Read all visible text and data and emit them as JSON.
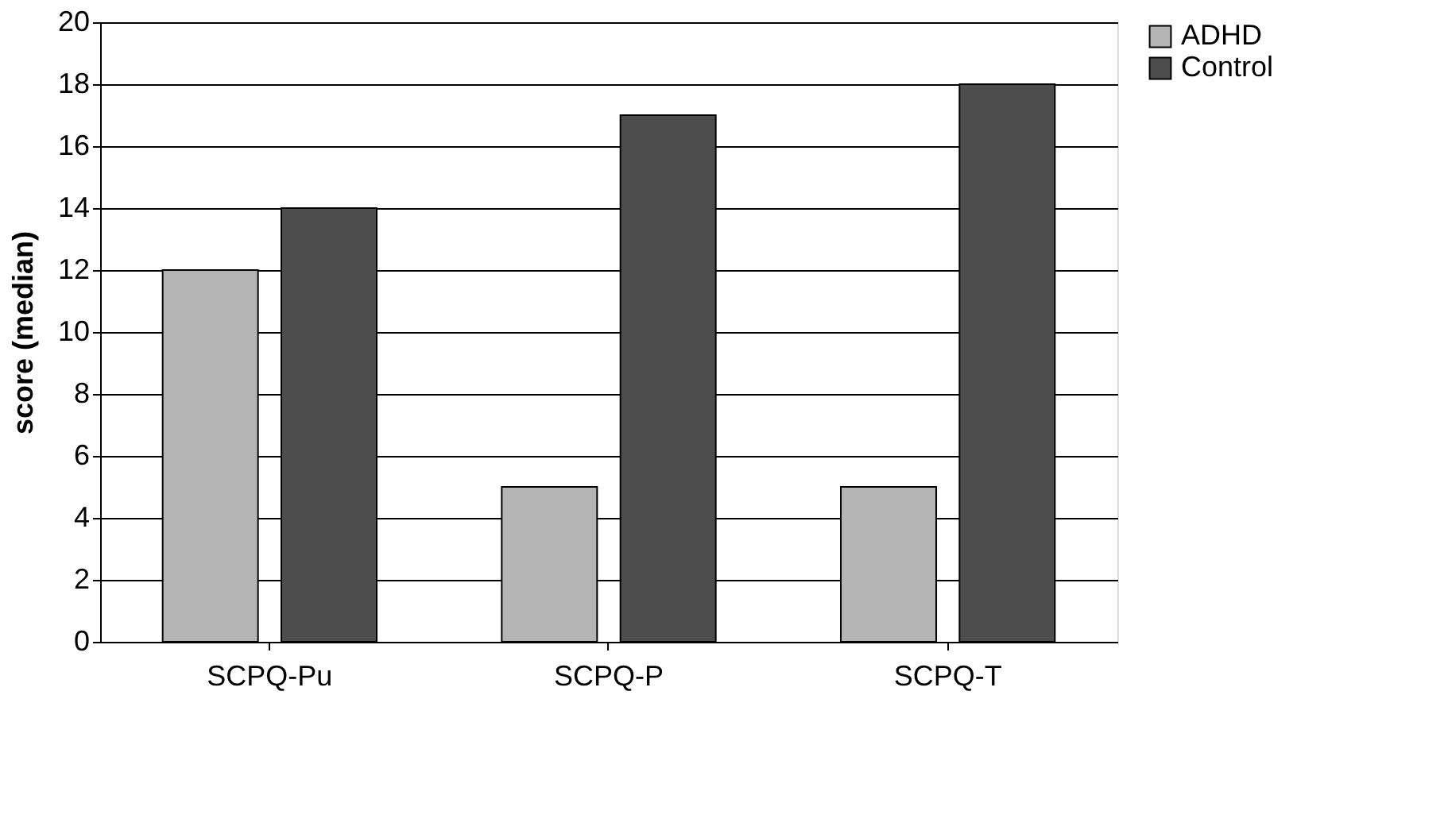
{
  "chart_data": {
    "type": "bar",
    "ylabel": "score (median)",
    "categories": [
      "SCPQ-Pu",
      "SCPQ-P",
      "SCPQ-T"
    ],
    "series": [
      {
        "name": "ADHD",
        "color": "#b4b4b4",
        "values": [
          12,
          5,
          5
        ]
      },
      {
        "name": "Control",
        "color": "#4d4d4d",
        "values": [
          14,
          17,
          18
        ]
      }
    ],
    "ylim": [
      0,
      20
    ],
    "yticks": [
      0,
      2,
      4,
      6,
      8,
      10,
      12,
      14,
      16,
      18,
      20
    ],
    "grid": "y",
    "legend": "right"
  }
}
